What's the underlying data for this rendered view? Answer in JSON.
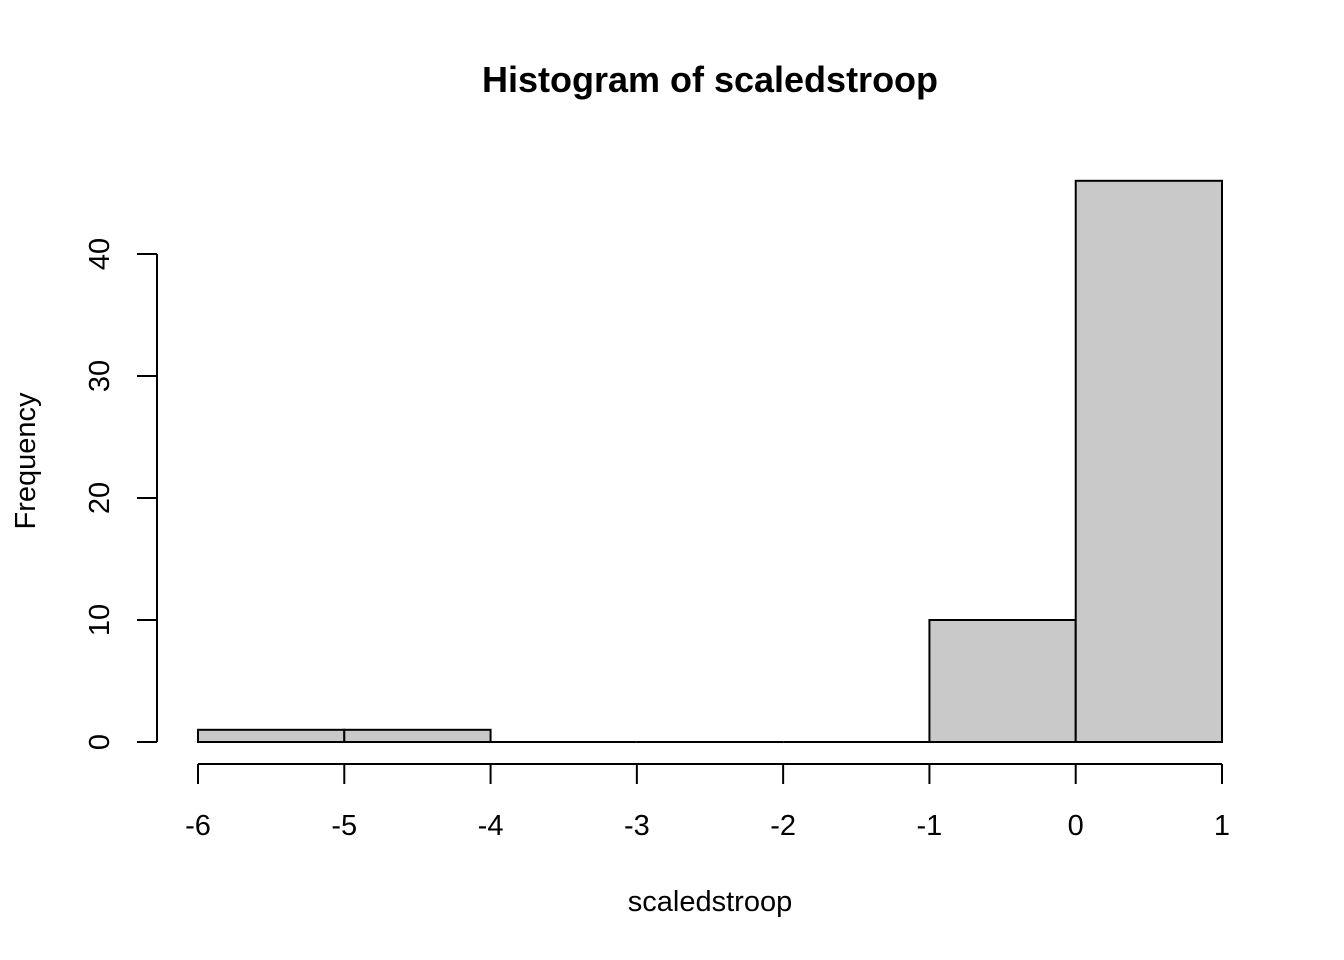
{
  "chart_data": {
    "type": "bar",
    "title": "Histogram of scaledstroop",
    "xlabel": "scaledstroop",
    "ylabel": "Frequency",
    "bins": [
      {
        "from": -6,
        "to": -5,
        "count": 1
      },
      {
        "from": -5,
        "to": -4,
        "count": 1
      },
      {
        "from": -4,
        "to": -3,
        "count": 0
      },
      {
        "from": -3,
        "to": -2,
        "count": 0
      },
      {
        "from": -2,
        "to": -1,
        "count": 0
      },
      {
        "from": -1,
        "to": 0,
        "count": 10
      },
      {
        "from": 0,
        "to": 1,
        "count": 46
      }
    ],
    "xlim": [
      -6,
      1
    ],
    "ylim": [
      0,
      46
    ],
    "x_ticks": [
      "-6",
      "-5",
      "-4",
      "-3",
      "-2",
      "-1",
      "0",
      "1"
    ],
    "y_ticks": [
      "0",
      "10",
      "20",
      "30",
      "40"
    ],
    "bar_color": "#c9c9c9",
    "grid": false,
    "legend": "none"
  }
}
